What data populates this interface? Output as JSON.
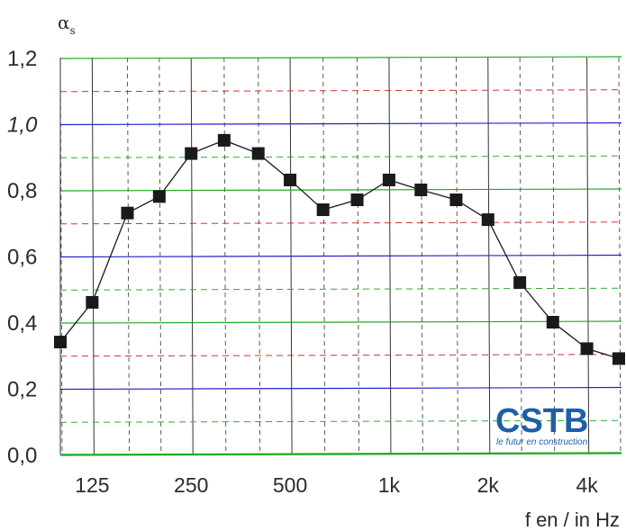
{
  "chart_data": {
    "type": "line",
    "ylabel": "α",
    "ylabel_sub": "s",
    "xlabel": "f en / in Hz",
    "ylim": [
      0.0,
      1.2
    ],
    "y_ticks": [
      "0,0",
      "0,2",
      "0,4",
      "0,6",
      "0,8",
      "1,0",
      "1,2"
    ],
    "x_tick_labels": [
      "125",
      "250",
      "500",
      "1k",
      "2k",
      "4k"
    ],
    "x_scale": "log (third-octave bands)",
    "grid": true,
    "series": [
      {
        "x": [
          100,
          125,
          160,
          200,
          250,
          315,
          400,
          500,
          630,
          800,
          1000,
          1250,
          1600,
          2000,
          2500,
          3150,
          4000,
          5000
        ],
        "values": [
          0.34,
          0.46,
          0.73,
          0.78,
          0.91,
          0.95,
          0.91,
          0.83,
          0.74,
          0.77,
          0.83,
          0.8,
          0.77,
          0.71,
          0.52,
          0.4,
          0.32,
          0.29
        ],
        "marker": "square",
        "color": "#1a1a1a"
      }
    ],
    "colors": {
      "major_grid_blue": "#2222cc",
      "major_grid_green": "#22aa22",
      "minor_grid_red": "#cc3333",
      "minor_grid_blue": "#2233bb",
      "minor_grid_green": "#33aa33",
      "vertical_grid": "#333333"
    }
  },
  "logo": {
    "text": "CSTB",
    "tagline": "le futur en construction"
  }
}
